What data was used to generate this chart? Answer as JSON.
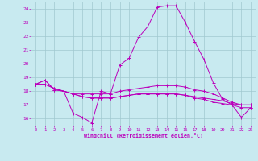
{
  "title": "",
  "xlabel": "Windchill (Refroidissement éolien,°C)",
  "background_color": "#c8eaf0",
  "grid_color": "#a0c8d0",
  "line_color": "#bb00bb",
  "ylim": [
    15.5,
    24.5
  ],
  "xlim": [
    -0.5,
    23.5
  ],
  "yticks": [
    16,
    17,
    18,
    19,
    20,
    21,
    22,
    23,
    24
  ],
  "xticks": [
    0,
    1,
    2,
    3,
    4,
    5,
    6,
    7,
    8,
    9,
    10,
    11,
    12,
    13,
    14,
    15,
    16,
    17,
    18,
    19,
    20,
    21,
    22,
    23
  ],
  "series": [
    [
      18.5,
      18.8,
      18.1,
      18.0,
      16.4,
      16.1,
      15.7,
      18.0,
      17.8,
      19.9,
      20.4,
      21.9,
      22.7,
      24.1,
      24.2,
      24.2,
      23.0,
      21.6,
      20.3,
      18.6,
      17.4,
      17.0,
      16.1,
      16.8
    ],
    [
      18.5,
      18.8,
      18.1,
      18.0,
      17.8,
      17.8,
      17.8,
      17.8,
      17.8,
      18.0,
      18.1,
      18.2,
      18.3,
      18.4,
      18.4,
      18.4,
      18.3,
      18.1,
      18.0,
      17.8,
      17.5,
      17.2,
      17.0,
      17.0
    ],
    [
      18.5,
      18.5,
      18.2,
      18.0,
      17.8,
      17.6,
      17.5,
      17.5,
      17.5,
      17.6,
      17.7,
      17.8,
      17.8,
      17.8,
      17.8,
      17.8,
      17.7,
      17.6,
      17.5,
      17.4,
      17.3,
      17.1,
      17.0,
      17.0
    ],
    [
      18.5,
      18.5,
      18.2,
      18.0,
      17.8,
      17.6,
      17.5,
      17.5,
      17.5,
      17.6,
      17.7,
      17.8,
      17.8,
      17.8,
      17.8,
      17.8,
      17.7,
      17.5,
      17.4,
      17.2,
      17.1,
      17.0,
      16.8,
      16.8
    ]
  ]
}
